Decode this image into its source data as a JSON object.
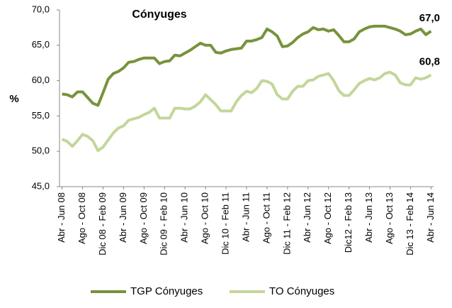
{
  "chart_data": {
    "type": "line",
    "title": "Cónyuges",
    "y_label": "%",
    "categories": [
      "Abr - Jun 08",
      null,
      null,
      null,
      "Ago - Oct 08",
      null,
      null,
      null,
      "Dic 08 - Feb 09",
      null,
      null,
      null,
      "Abr - Jun 09",
      null,
      null,
      null,
      "Ago - Oct 09",
      null,
      null,
      null,
      "Dic 09 - Feb 10",
      null,
      null,
      null,
      "Abr - Jun 10",
      null,
      null,
      null,
      "Ago - Oct 10",
      null,
      null,
      null,
      "Dic 10 - Feb 11",
      null,
      null,
      null,
      "Abr - Jun 11",
      null,
      null,
      null,
      "Ago - Oct 11",
      null,
      null,
      null,
      "Dic 11 - Feb 12",
      null,
      null,
      null,
      "Abr - Jun 12",
      null,
      null,
      null,
      "Ago - Oct 12",
      null,
      null,
      null,
      "Dic12 - Feb 13",
      null,
      null,
      null,
      "Abr - Jun 13",
      null,
      null,
      null,
      "Ago - Oct 13",
      null,
      null,
      null,
      "Dic 13 - Feb 14",
      null,
      null,
      null,
      "Abr - Jun 14"
    ],
    "series": [
      {
        "name": "TGP Cónyuges",
        "color": "#77933c",
        "values": [
          58.1,
          58.0,
          57.7,
          58.4,
          58.4,
          57.6,
          56.8,
          56.5,
          58.3,
          60.2,
          61.0,
          61.3,
          61.8,
          62.6,
          62.7,
          63.0,
          63.2,
          63.2,
          63.2,
          62.4,
          62.7,
          62.8,
          63.6,
          63.5,
          63.9,
          64.3,
          64.8,
          65.3,
          65.0,
          65.0,
          64.0,
          63.9,
          64.2,
          64.4,
          64.5,
          64.6,
          65.6,
          65.6,
          65.8,
          66.1,
          67.3,
          66.9,
          66.3,
          64.8,
          64.9,
          65.4,
          66.1,
          66.6,
          66.9,
          67.5,
          67.2,
          67.3,
          67.0,
          67.2,
          66.4,
          65.5,
          65.5,
          65.9,
          66.9,
          67.3,
          67.6,
          67.7,
          67.7,
          67.7,
          67.5,
          67.3,
          67.0,
          66.5,
          66.6,
          67.0,
          67.3,
          66.5,
          67.0
        ],
        "value_labels": [
          null,
          null,
          null,
          null,
          null,
          null,
          null,
          null,
          null,
          null,
          null,
          null,
          null,
          null,
          null,
          null,
          null,
          null,
          null,
          null,
          null,
          null,
          null,
          null,
          null,
          null,
          null,
          null,
          null,
          null,
          null,
          null,
          null,
          null,
          null,
          null,
          null,
          null,
          null,
          null,
          null,
          null,
          null,
          null,
          null,
          null,
          null,
          null,
          null,
          null,
          null,
          null,
          null,
          null,
          null,
          null,
          null,
          null,
          null,
          null,
          null,
          null,
          null,
          null,
          null,
          null,
          null,
          null,
          null,
          null,
          null,
          null,
          "67,0"
        ]
      },
      {
        "name": "TO Cónyuges",
        "color": "#c3d69b",
        "values": [
          51.7,
          51.4,
          50.7,
          51.5,
          52.4,
          52.1,
          51.5,
          50.1,
          50.6,
          51.6,
          52.6,
          53.3,
          53.6,
          54.4,
          54.6,
          54.8,
          55.2,
          55.5,
          56.1,
          54.7,
          54.7,
          54.7,
          56.1,
          56.1,
          56.0,
          56.0,
          56.4,
          57.0,
          58.0,
          57.3,
          56.6,
          55.7,
          55.7,
          55.7,
          57.0,
          57.9,
          58.5,
          58.3,
          58.9,
          60.0,
          59.9,
          59.5,
          58.0,
          57.4,
          57.4,
          58.5,
          59.2,
          59.2,
          60.0,
          60.1,
          60.6,
          60.8,
          61.0,
          60.0,
          58.6,
          57.9,
          57.9,
          58.7,
          59.6,
          60.0,
          60.3,
          60.1,
          60.4,
          61.0,
          61.2,
          60.8,
          59.7,
          59.4,
          59.4,
          60.4,
          60.2,
          60.4,
          60.8
        ],
        "value_labels": [
          null,
          null,
          null,
          null,
          null,
          null,
          null,
          null,
          null,
          null,
          null,
          null,
          null,
          null,
          null,
          null,
          null,
          null,
          null,
          null,
          null,
          null,
          null,
          null,
          null,
          null,
          null,
          null,
          null,
          null,
          null,
          null,
          null,
          null,
          null,
          null,
          null,
          null,
          null,
          null,
          null,
          null,
          null,
          null,
          null,
          null,
          null,
          null,
          null,
          null,
          null,
          null,
          null,
          null,
          null,
          null,
          null,
          null,
          null,
          null,
          null,
          null,
          null,
          null,
          null,
          null,
          null,
          null,
          null,
          null,
          null,
          null,
          "60,8"
        ]
      }
    ],
    "ylim": [
      45,
      70
    ],
    "yticks": [
      {
        "value": 45,
        "label": "45,0"
      },
      {
        "value": 50,
        "label": "50,0"
      },
      {
        "value": 55,
        "label": "55,0"
      },
      {
        "value": 60,
        "label": "60,0"
      },
      {
        "value": 65,
        "label": "65,0"
      },
      {
        "value": 70,
        "label": "70,0"
      }
    ],
    "grid": false,
    "legend": "bottom"
  }
}
